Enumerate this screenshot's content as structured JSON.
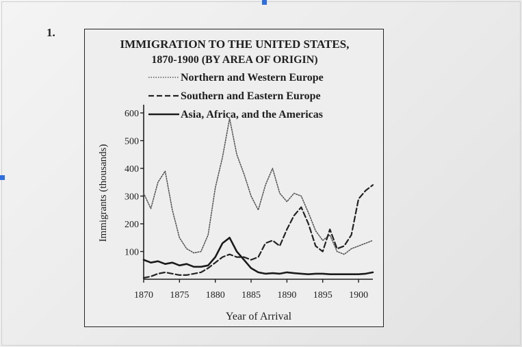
{
  "question_number": "1.",
  "chart_data": {
    "type": "line",
    "title": "IMMIGRATION TO THE UNITED STATES,",
    "subtitle": "1870-1900 (BY AREA OF ORIGIN)",
    "xlabel": "Year of Arrival",
    "ylabel": "Immigrants (thousands)",
    "xlim": [
      1870,
      1902
    ],
    "ylim": [
      0,
      600
    ],
    "x_ticks": [
      "1870",
      "1875",
      "1880",
      "1885",
      "1890",
      "1895",
      "1900"
    ],
    "y_ticks": [
      "100",
      "200",
      "300",
      "400",
      "500",
      "600"
    ],
    "grid": false,
    "legend_position": "top",
    "series": [
      {
        "name": "Northern and Western Europe",
        "style": "dotted",
        "color": "#555555",
        "x": [
          1870,
          1871,
          1872,
          1873,
          1874,
          1875,
          1876,
          1877,
          1878,
          1879,
          1880,
          1881,
          1882,
          1883,
          1884,
          1885,
          1886,
          1887,
          1888,
          1889,
          1890,
          1891,
          1892,
          1893,
          1894,
          1895,
          1896,
          1897,
          1898,
          1899,
          1900,
          1901,
          1902
        ],
        "y": [
          310,
          255,
          350,
          390,
          250,
          150,
          110,
          95,
          100,
          160,
          330,
          440,
          580,
          450,
          380,
          300,
          250,
          340,
          400,
          310,
          280,
          310,
          300,
          240,
          175,
          140,
          160,
          100,
          90,
          110,
          120,
          130,
          140
        ]
      },
      {
        "name": "Southern and Eastern Europe",
        "style": "dashed",
        "color": "#222222",
        "x": [
          1870,
          1871,
          1872,
          1873,
          1874,
          1875,
          1876,
          1877,
          1878,
          1879,
          1880,
          1881,
          1882,
          1883,
          1884,
          1885,
          1886,
          1887,
          1888,
          1889,
          1890,
          1891,
          1892,
          1893,
          1894,
          1895,
          1896,
          1897,
          1898,
          1899,
          1900,
          1901,
          1902
        ],
        "y": [
          5,
          10,
          20,
          25,
          20,
          15,
          15,
          20,
          25,
          40,
          60,
          80,
          90,
          80,
          80,
          70,
          80,
          130,
          140,
          120,
          180,
          230,
          260,
          200,
          120,
          100,
          180,
          110,
          120,
          160,
          290,
          320,
          340
        ]
      },
      {
        "name": "Asia, Africa, and the Americas",
        "style": "solid",
        "color": "#1a1a1a",
        "x": [
          1870,
          1871,
          1872,
          1873,
          1874,
          1875,
          1876,
          1877,
          1878,
          1879,
          1880,
          1881,
          1882,
          1883,
          1884,
          1885,
          1886,
          1887,
          1888,
          1889,
          1890,
          1891,
          1892,
          1893,
          1894,
          1895,
          1896,
          1897,
          1898,
          1899,
          1900,
          1901,
          1902
        ],
        "y": [
          70,
          60,
          65,
          55,
          60,
          50,
          55,
          45,
          45,
          50,
          80,
          130,
          150,
          100,
          70,
          40,
          25,
          20,
          22,
          20,
          25,
          22,
          20,
          18,
          20,
          20,
          18,
          18,
          18,
          18,
          18,
          20,
          25
        ]
      }
    ]
  }
}
